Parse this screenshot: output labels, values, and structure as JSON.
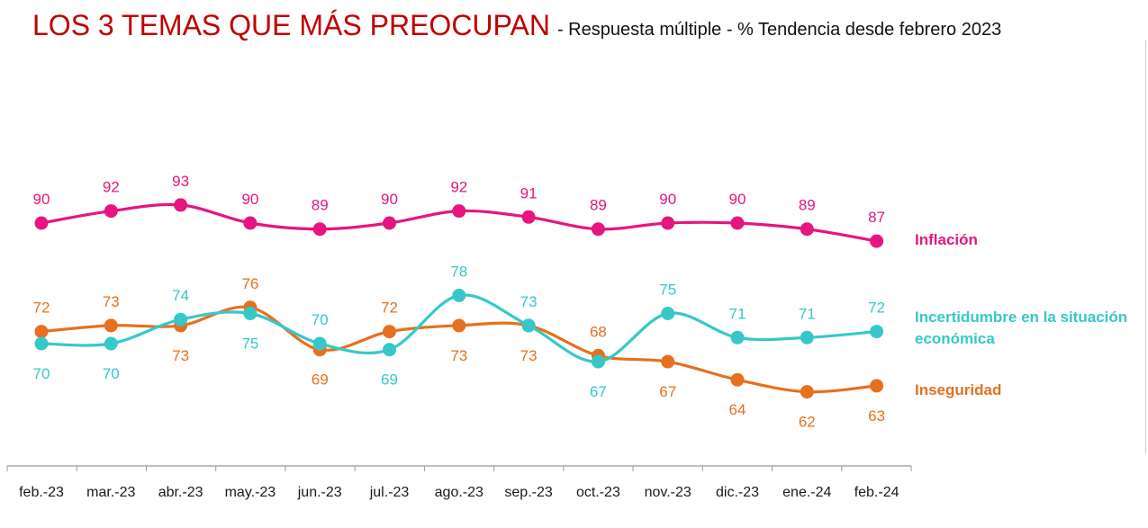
{
  "chart_data": {
    "type": "line",
    "title": "LOS 3 TEMAS QUE MÁS PREOCUPAN",
    "subtitle": "- Respuesta múltiple - % Tendencia desde febrero 2023",
    "categories": [
      "feb.-23",
      "mar.-23",
      "abr.-23",
      "may.-23",
      "jun.-23",
      "jul.-23",
      "ago.-23",
      "sep.-23",
      "oct.-23",
      "nov.-23",
      "dic.-23",
      "ene.-24",
      "feb.-24"
    ],
    "ylim": [
      55,
      100
    ],
    "grid": false,
    "legend": "right, at line ends",
    "series": [
      {
        "name": "Inflación",
        "color": "#e6157f",
        "label_position": "above",
        "values": [
          90,
          92,
          93,
          90,
          89,
          90,
          92,
          91,
          89,
          90,
          90,
          89,
          87
        ]
      },
      {
        "name_lines": [
          "Incertidumbre en la situación",
          "económica"
        ],
        "color": "#36c8c8",
        "label_position": "mixed",
        "values": [
          70,
          70,
          74,
          75,
          70,
          69,
          78,
          73,
          67,
          75,
          71,
          71,
          72
        ]
      },
      {
        "name": "Inseguridad",
        "color": "#e6701e",
        "label_position": "mixed",
        "values": [
          72,
          73,
          73,
          76,
          69,
          72,
          73,
          73,
          68,
          67,
          64,
          62,
          63
        ]
      }
    ]
  }
}
